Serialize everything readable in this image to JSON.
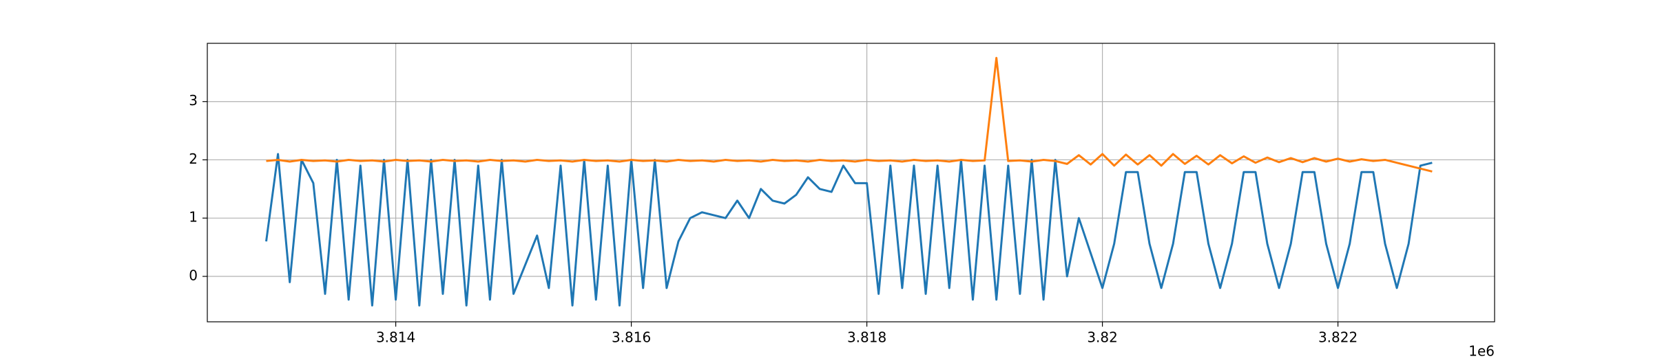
{
  "chart_data": {
    "type": "line",
    "x": [
      3.8129,
      3.813,
      3.8131,
      3.8132,
      3.8133,
      3.8134,
      3.8135,
      3.8136,
      3.8137,
      3.8138,
      3.8139,
      3.814,
      3.8141,
      3.8142,
      3.8143,
      3.8144,
      3.8145,
      3.8146,
      3.8147,
      3.8148,
      3.8149,
      3.815,
      3.8151,
      3.8152,
      3.8153,
      3.8154,
      3.8155,
      3.8156,
      3.8157,
      3.8158,
      3.8159,
      3.816,
      3.8161,
      3.8162,
      3.8163,
      3.8164,
      3.8165,
      3.8166,
      3.8167,
      3.8168,
      3.8169,
      3.817,
      3.8171,
      3.8172,
      3.8173,
      3.8174,
      3.8175,
      3.8176,
      3.8177,
      3.8178,
      3.8179,
      3.818,
      3.8181,
      3.8182,
      3.8183,
      3.8184,
      3.8185,
      3.8186,
      3.8187,
      3.8188,
      3.8189,
      3.819,
      3.8191,
      3.8192,
      3.8193,
      3.8194,
      3.8195,
      3.8196,
      3.8197,
      3.8198,
      3.8199,
      3.82,
      3.8201,
      3.8202,
      3.8203,
      3.8204,
      3.8205,
      3.8206,
      3.8207,
      3.8208,
      3.8209,
      3.821,
      3.8211,
      3.8212,
      3.8213,
      3.8214,
      3.8215,
      3.8216,
      3.8217,
      3.8218,
      3.8219,
      3.822,
      3.8221,
      3.8222,
      3.8223,
      3.8224,
      3.8225,
      3.8226,
      3.8227,
      3.8228
    ],
    "series": [
      {
        "color": "#1f77b4",
        "values": [
          0.6,
          2.1,
          -0.1,
          2.0,
          1.6,
          -0.3,
          2.0,
          -0.4,
          1.9,
          -0.5,
          2.0,
          -0.4,
          2.0,
          -0.5,
          2.0,
          -0.3,
          2.0,
          -0.5,
          1.9,
          -0.4,
          2.0,
          -0.3,
          0.2,
          0.7,
          -0.2,
          1.9,
          -0.5,
          2.0,
          -0.4,
          1.9,
          -0.5,
          2.0,
          -0.2,
          2.0,
          -0.2,
          0.6,
          1.0,
          1.1,
          1.05,
          1.0,
          1.3,
          1.0,
          1.5,
          1.3,
          1.25,
          1.4,
          1.7,
          1.5,
          1.45,
          1.9,
          1.6,
          1.6,
          -0.3,
          1.9,
          -0.2,
          1.9,
          -0.3,
          1.9,
          -0.2,
          2.0,
          -0.4,
          1.9,
          -0.4,
          1.9,
          -0.3,
          2.0,
          -0.4,
          2.0,
          0.0,
          1.0,
          0.4,
          -0.2,
          0.56,
          1.79,
          1.79,
          0.56,
          -0.2,
          0.56,
          1.79,
          1.79,
          0.56,
          -0.2,
          0.56,
          1.79,
          1.79,
          0.56,
          -0.2,
          0.56,
          1.79,
          1.79,
          0.56,
          -0.2,
          0.56,
          1.79,
          1.79,
          0.56,
          -0.2,
          0.56,
          1.9,
          1.95
        ]
      },
      {
        "color": "#ff7f0e",
        "values": [
          1.98,
          2.0,
          1.97,
          2.0,
          1.98,
          1.99,
          1.97,
          2.0,
          1.98,
          1.99,
          1.97,
          2.0,
          1.98,
          1.99,
          1.97,
          2.0,
          1.98,
          1.99,
          1.97,
          2.0,
          1.98,
          1.99,
          1.97,
          2.0,
          1.98,
          1.99,
          1.97,
          2.0,
          1.98,
          1.99,
          1.97,
          2.0,
          1.98,
          1.99,
          1.97,
          2.0,
          1.98,
          1.99,
          1.97,
          2.0,
          1.98,
          1.99,
          1.97,
          2.0,
          1.98,
          1.99,
          1.97,
          2.0,
          1.98,
          1.99,
          1.97,
          2.0,
          1.98,
          1.99,
          1.97,
          2.0,
          1.98,
          1.99,
          1.97,
          2.0,
          1.98,
          1.99,
          3.75,
          1.98,
          1.99,
          1.97,
          2.0,
          1.98,
          1.93,
          2.08,
          1.92,
          2.1,
          1.9,
          2.09,
          1.92,
          2.08,
          1.9,
          2.1,
          1.93,
          2.07,
          1.92,
          2.08,
          1.94,
          2.06,
          1.95,
          2.04,
          1.96,
          2.03,
          1.96,
          2.03,
          1.97,
          2.02,
          1.97,
          2.01,
          1.98,
          2.0,
          1.95,
          1.9,
          1.85,
          1.8
        ]
      }
    ],
    "xlim": [
      3.8124,
      3.82333
    ],
    "ylim": [
      -0.78,
      4.0
    ],
    "xticks": [
      3.814,
      3.816,
      3.818,
      3.82,
      3.822
    ],
    "yticks": [
      0,
      1,
      2,
      3
    ],
    "x_offset_label": "1e6",
    "grid": true
  }
}
